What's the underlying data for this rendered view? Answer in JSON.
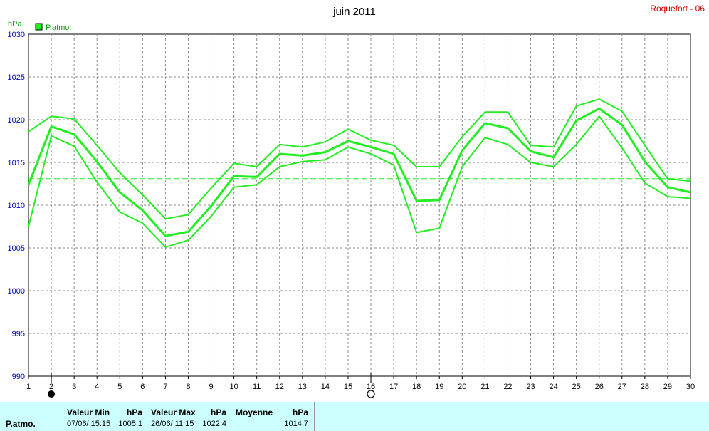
{
  "header": {
    "title": "juin 2011",
    "station": "Roquefort - 06"
  },
  "chart_data": {
    "type": "line",
    "title": "juin 2011",
    "ylabel": "hPa",
    "ylim": [
      990,
      1030
    ],
    "yticks": [
      990,
      995,
      1000,
      1005,
      1010,
      1015,
      1020,
      1025,
      1030
    ],
    "x": [
      1,
      2,
      3,
      4,
      5,
      6,
      7,
      8,
      9,
      10,
      11,
      12,
      13,
      14,
      15,
      16,
      17,
      18,
      19,
      20,
      21,
      22,
      23,
      24,
      25,
      26,
      27,
      28,
      29,
      30
    ],
    "grid": true,
    "legend": "top-left",
    "series": [
      {
        "name": "P.atmo.",
        "role": "max",
        "color": "#22ee22",
        "values": [
          1018.6,
          1020.4,
          1020.1,
          1017.0,
          1013.8,
          1011.2,
          1008.4,
          1008.9,
          1012.0,
          1014.9,
          1014.5,
          1017.1,
          1016.8,
          1017.4,
          1018.9,
          1017.6,
          1017.0,
          1014.5,
          1014.5,
          1018.0,
          1020.9,
          1020.9,
          1017.0,
          1016.8,
          1021.6,
          1022.4,
          1021.0,
          1017.0,
          1013.1,
          1012.8
        ]
      },
      {
        "name": "P.atmo.",
        "role": "mean",
        "color": "#22ee22",
        "values": [
          1012.4,
          1019.2,
          1018.3,
          1015.1,
          1011.5,
          1009.4,
          1006.4,
          1006.9,
          1009.9,
          1013.4,
          1013.3,
          1016.0,
          1015.8,
          1016.2,
          1017.5,
          1016.8,
          1016.0,
          1010.5,
          1010.6,
          1016.4,
          1019.6,
          1019.0,
          1016.3,
          1015.6,
          1019.9,
          1021.3,
          1019.4,
          1015.1,
          1012.1,
          1011.5
        ]
      },
      {
        "name": "P.atmo.",
        "role": "min",
        "color": "#22ee22",
        "values": [
          1007.5,
          1018.1,
          1016.9,
          1012.7,
          1009.2,
          1007.9,
          1005.1,
          1005.9,
          1008.7,
          1012.1,
          1012.4,
          1014.5,
          1015.1,
          1015.3,
          1016.8,
          1016.0,
          1014.7,
          1006.8,
          1007.3,
          1014.5,
          1017.9,
          1017.1,
          1015.0,
          1014.5,
          1017.1,
          1020.4,
          1016.7,
          1012.6,
          1011.0,
          1010.8
        ]
      }
    ],
    "reference_line": {
      "value": 1013.1,
      "color": "#22ee22"
    },
    "markers": {
      "full_moon_day": 2,
      "new_moon_day": 16
    }
  },
  "legend": {
    "label": "P.atmo.",
    "color": "#22ee22"
  },
  "unit_label": "hPa",
  "stats": {
    "row_label": "P.atmo.",
    "min": {
      "label": "Valeur Min",
      "unit": "hPa",
      "date": "07/06/  15:15",
      "value": "1005.1"
    },
    "max": {
      "label": "Valeur Max",
      "unit": "hPa",
      "date": "26/06/  11:15",
      "value": "1022.4"
    },
    "mean": {
      "label": "Moyenne",
      "unit": "hPa",
      "value": "1014.7"
    }
  }
}
